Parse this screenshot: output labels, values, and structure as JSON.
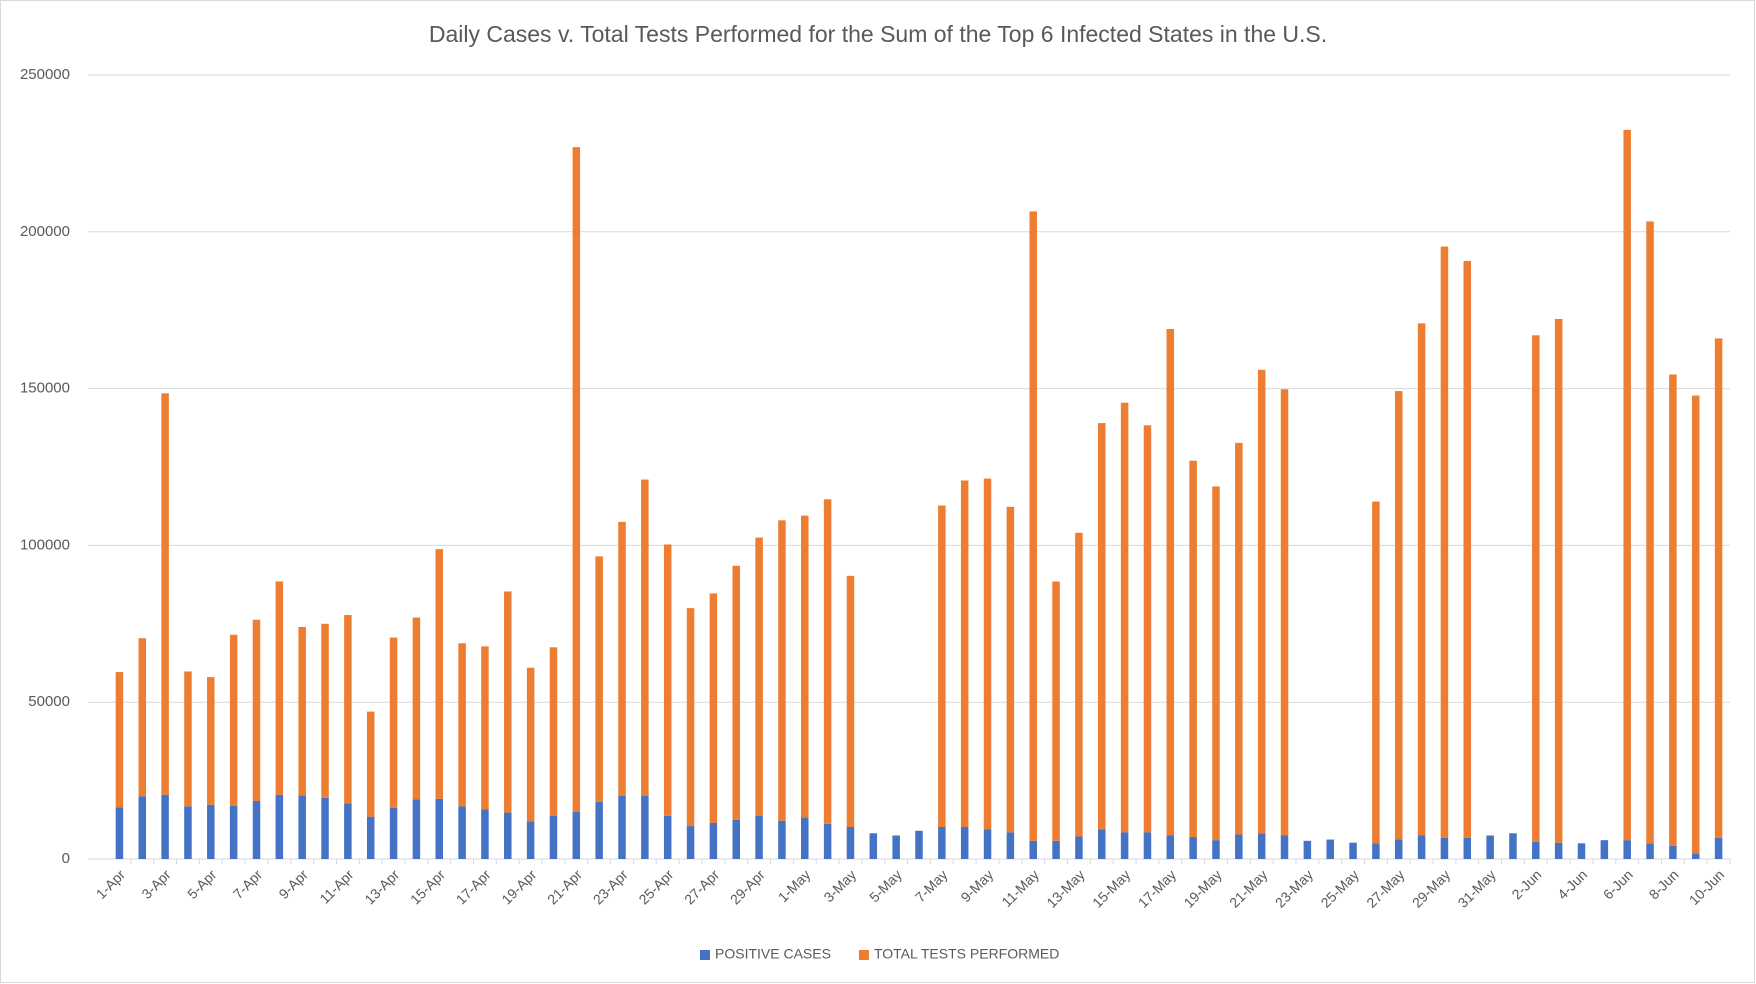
{
  "chart_data": {
    "type": "stacked_bar",
    "title": "Daily Cases v. Total Tests Performed for the Sum of the Top 6 Infected States in the U.S.",
    "categories": [
      "1-Apr",
      null,
      "3-Apr",
      null,
      "5-Apr",
      null,
      "7-Apr",
      null,
      "9-Apr",
      null,
      "11-Apr",
      null,
      "13-Apr",
      null,
      "15-Apr",
      null,
      "17-Apr",
      null,
      "19-Apr",
      null,
      "21-Apr",
      null,
      "23-Apr",
      null,
      "25-Apr",
      null,
      "27-Apr",
      null,
      "29-Apr",
      null,
      "1-May",
      null,
      "3-May",
      null,
      "5-May",
      null,
      "7-May",
      null,
      "9-May",
      null,
      "11-May",
      null,
      "13-May",
      null,
      "15-May",
      null,
      "17-May",
      null,
      "19-May",
      null,
      "21-May",
      null,
      "23-May",
      null,
      "25-May",
      null,
      "27-May",
      null,
      "29-May",
      null,
      "31-May",
      null,
      "2-Jun",
      null,
      "4-Jun",
      null,
      "6-Jun",
      null,
      "8-Jun",
      null,
      "10-Jun"
    ],
    "series": [
      {
        "name": "POSITIVE CASES",
        "color": "#4472c4",
        "values": [
          16500,
          20000,
          20500,
          16800,
          17300,
          17000,
          18500,
          20500,
          20300,
          19500,
          17800,
          13500,
          16300,
          19000,
          19200,
          16800,
          15800,
          14800,
          12000,
          13800,
          15000,
          18200,
          20200,
          20200,
          13800,
          10500,
          11500,
          12500,
          13800,
          12200,
          13200,
          11200,
          10200,
          8200,
          7500,
          9000,
          10200,
          10200,
          9500,
          8500,
          5800,
          5800,
          7200,
          9500,
          8500,
          8500,
          7500,
          7000,
          6000,
          7800,
          8200,
          7500,
          5800,
          6200,
          5200,
          5000,
          6200,
          7500,
          6800,
          6800,
          7500,
          8200,
          5500,
          5200,
          5000,
          6000,
          6000,
          5000,
          4200,
          1800,
          6800
        ]
      },
      {
        "name": "TOTAL TESTS PERFORMED",
        "color": "#ed7d31",
        "values": [
          43100,
          50400,
          128000,
          43000,
          40700,
          54500,
          57800,
          68000,
          53700,
          55500,
          60000,
          33500,
          54300,
          58000,
          79600,
          52000,
          52000,
          70500,
          49000,
          53700,
          212000,
          78300,
          87300,
          100800,
          86500,
          69500,
          73200,
          81000,
          88700,
          95800,
          96300,
          103500,
          80100,
          null,
          null,
          null,
          102500,
          110500,
          111800,
          103800,
          200700,
          82700,
          96800,
          129500,
          137000,
          129800,
          161500,
          120000,
          112800,
          124900,
          147800,
          142300,
          null,
          null,
          null,
          109000,
          143000,
          163300,
          188500,
          183900,
          null,
          null,
          161500,
          167000,
          null,
          null,
          226500,
          198300,
          150300,
          146000,
          159200
        ]
      }
    ],
    "ylim": [
      0,
      250000
    ],
    "yticks": [
      0,
      50000,
      100000,
      150000,
      200000,
      250000
    ],
    "grid": true,
    "legend": "bottom"
  }
}
